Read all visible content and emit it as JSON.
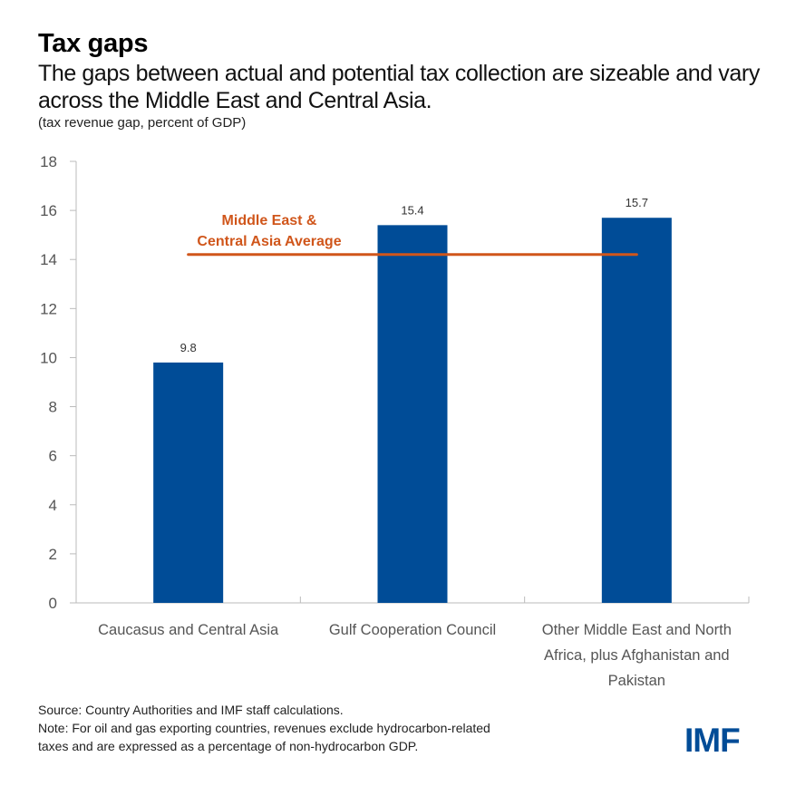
{
  "header": {
    "title": "Tax gaps",
    "subtitle": "The gaps between actual and potential tax collection are sizeable and vary across the Middle East and Central Asia.",
    "units": "(tax revenue gap, percent of GDP)"
  },
  "colors": {
    "bar": "#004C97",
    "average_line": "#D0561B",
    "axis": "#BBBBBB",
    "logo": "#004C97"
  },
  "chart_data": {
    "type": "bar",
    "title": "Tax gaps",
    "subtitle": "The gaps between actual and potential tax collection are sizeable and vary across the Middle East and Central Asia.",
    "ylabel": "tax revenue gap, percent of GDP",
    "xlabel": "",
    "categories": [
      [
        "Caucasus and Central Asia"
      ],
      [
        "Gulf Cooperation Council"
      ],
      [
        "Other Middle East and North",
        "Africa, plus Afghanistan and",
        "Pakistan"
      ]
    ],
    "values": [
      9.8,
      15.4,
      15.7
    ],
    "data_labels": [
      "9.8",
      "15.4",
      "15.7"
    ],
    "ylim": [
      0,
      18
    ],
    "yticks": [
      0,
      2,
      4,
      6,
      8,
      10,
      12,
      14,
      16,
      18
    ],
    "grid": false,
    "reference_line": {
      "label": [
        "Middle East &",
        "Central Asia Average"
      ],
      "value": 14.2
    }
  },
  "footer": {
    "source": "Source: Country Authorities and IMF staff calculations.",
    "note_line1": "Note: For oil and gas exporting countries, revenues exclude hydrocarbon-related",
    "note_line2": "taxes and are expressed as a percentage of non-hydrocarbon  GDP."
  },
  "logo": {
    "text": "IMF"
  }
}
